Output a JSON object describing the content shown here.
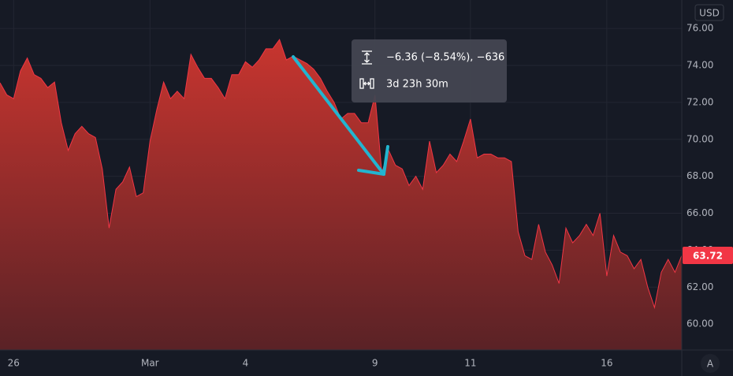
{
  "chart_data": {
    "type": "area",
    "currency": "USD",
    "categories": [
      null,
      null,
      "26",
      null,
      null,
      null,
      null,
      null,
      null,
      null,
      null,
      null,
      null,
      null,
      null,
      null,
      null,
      null,
      null,
      null,
      null,
      null,
      "Mar",
      null,
      null,
      null,
      null,
      null,
      null,
      null,
      null,
      null,
      null,
      null,
      null,
      null,
      "4",
      null,
      null,
      null,
      null,
      null,
      null,
      null,
      null,
      null,
      null,
      null,
      null,
      null,
      null,
      null,
      null,
      null,
      null,
      "9",
      null,
      null,
      null,
      null,
      null,
      null,
      null,
      null,
      null,
      null,
      null,
      null,
      null,
      "11",
      null,
      null,
      null,
      null,
      null,
      null,
      null,
      null,
      null,
      null,
      null,
      null,
      null,
      null,
      null,
      null,
      null,
      null,
      null,
      "16",
      null,
      null,
      null,
      null,
      null,
      null,
      null,
      null,
      null,
      null,
      null
    ],
    "values": [
      73.06,
      72.4,
      72.2,
      73.7,
      74.4,
      73.5,
      73.3,
      72.8,
      73.1,
      70.9,
      69.4,
      70.3,
      70.7,
      70.3,
      70.1,
      68.4,
      65.2,
      67.3,
      67.7,
      68.5,
      66.9,
      67.1,
      69.9,
      71.6,
      73.1,
      72.2,
      72.6,
      72.2,
      74.6,
      73.9,
      73.3,
      73.3,
      72.8,
      72.2,
      73.5,
      73.5,
      74.2,
      73.9,
      74.3,
      74.9,
      74.9,
      75.4,
      74.3,
      74.5,
      74.3,
      74.1,
      73.8,
      73.3,
      72.6,
      72.0,
      71.1,
      71.4,
      71.4,
      70.9,
      70.9,
      72.4,
      68.2,
      69.4,
      68.6,
      68.4,
      67.5,
      68.0,
      67.3,
      69.9,
      68.2,
      68.6,
      69.2,
      68.8,
      69.9,
      71.1,
      69.0,
      69.2,
      69.2,
      69.0,
      69.0,
      68.8,
      65.0,
      63.7,
      63.5,
      65.4,
      63.9,
      63.2,
      62.2,
      65.2,
      64.4,
      64.8,
      65.4,
      64.8,
      66.0,
      62.6,
      64.8,
      63.9,
      63.7,
      63.0,
      63.5,
      62.0,
      60.9,
      62.8,
      63.5,
      62.8,
      63.72
    ],
    "color": "#f23645",
    "ylim": [
      58.6,
      77.54
    ],
    "yticks": [
      {
        "value": 60,
        "label": "60.00"
      },
      {
        "value": 62,
        "label": "62.00"
      },
      {
        "value": 64,
        "label": "64.00"
      },
      {
        "value": 66,
        "label": "66.00"
      },
      {
        "value": 68,
        "label": "68.00"
      },
      {
        "value": 70,
        "label": "70.00"
      },
      {
        "value": 72,
        "label": "72.00"
      },
      {
        "value": 74,
        "label": "74.00"
      },
      {
        "value": 76,
        "label": "76.00"
      }
    ],
    "grid": true,
    "measure": {
      "price_change": "−6.36 (−8.54%), −636",
      "duration": "3d 23h 30m"
    },
    "scale_button": "A"
  }
}
